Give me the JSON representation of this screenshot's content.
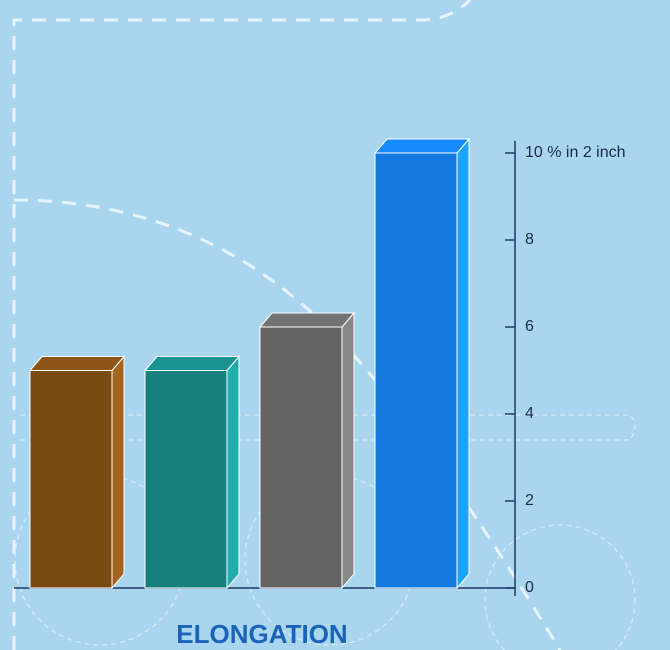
{
  "chart_data": {
    "type": "bar3d",
    "title": "ELONGATION",
    "categories": [
      null,
      null,
      null,
      null
    ],
    "values": [
      5,
      5,
      6,
      10
    ],
    "colors": [
      "#7a4a14",
      "#17807f",
      "#646464",
      "#1479de"
    ],
    "ylim": [
      0,
      10
    ],
    "yticks": [
      0,
      2,
      4,
      6,
      8,
      {
        "value": 10,
        "label": "10 % in 2 inch"
      }
    ]
  }
}
